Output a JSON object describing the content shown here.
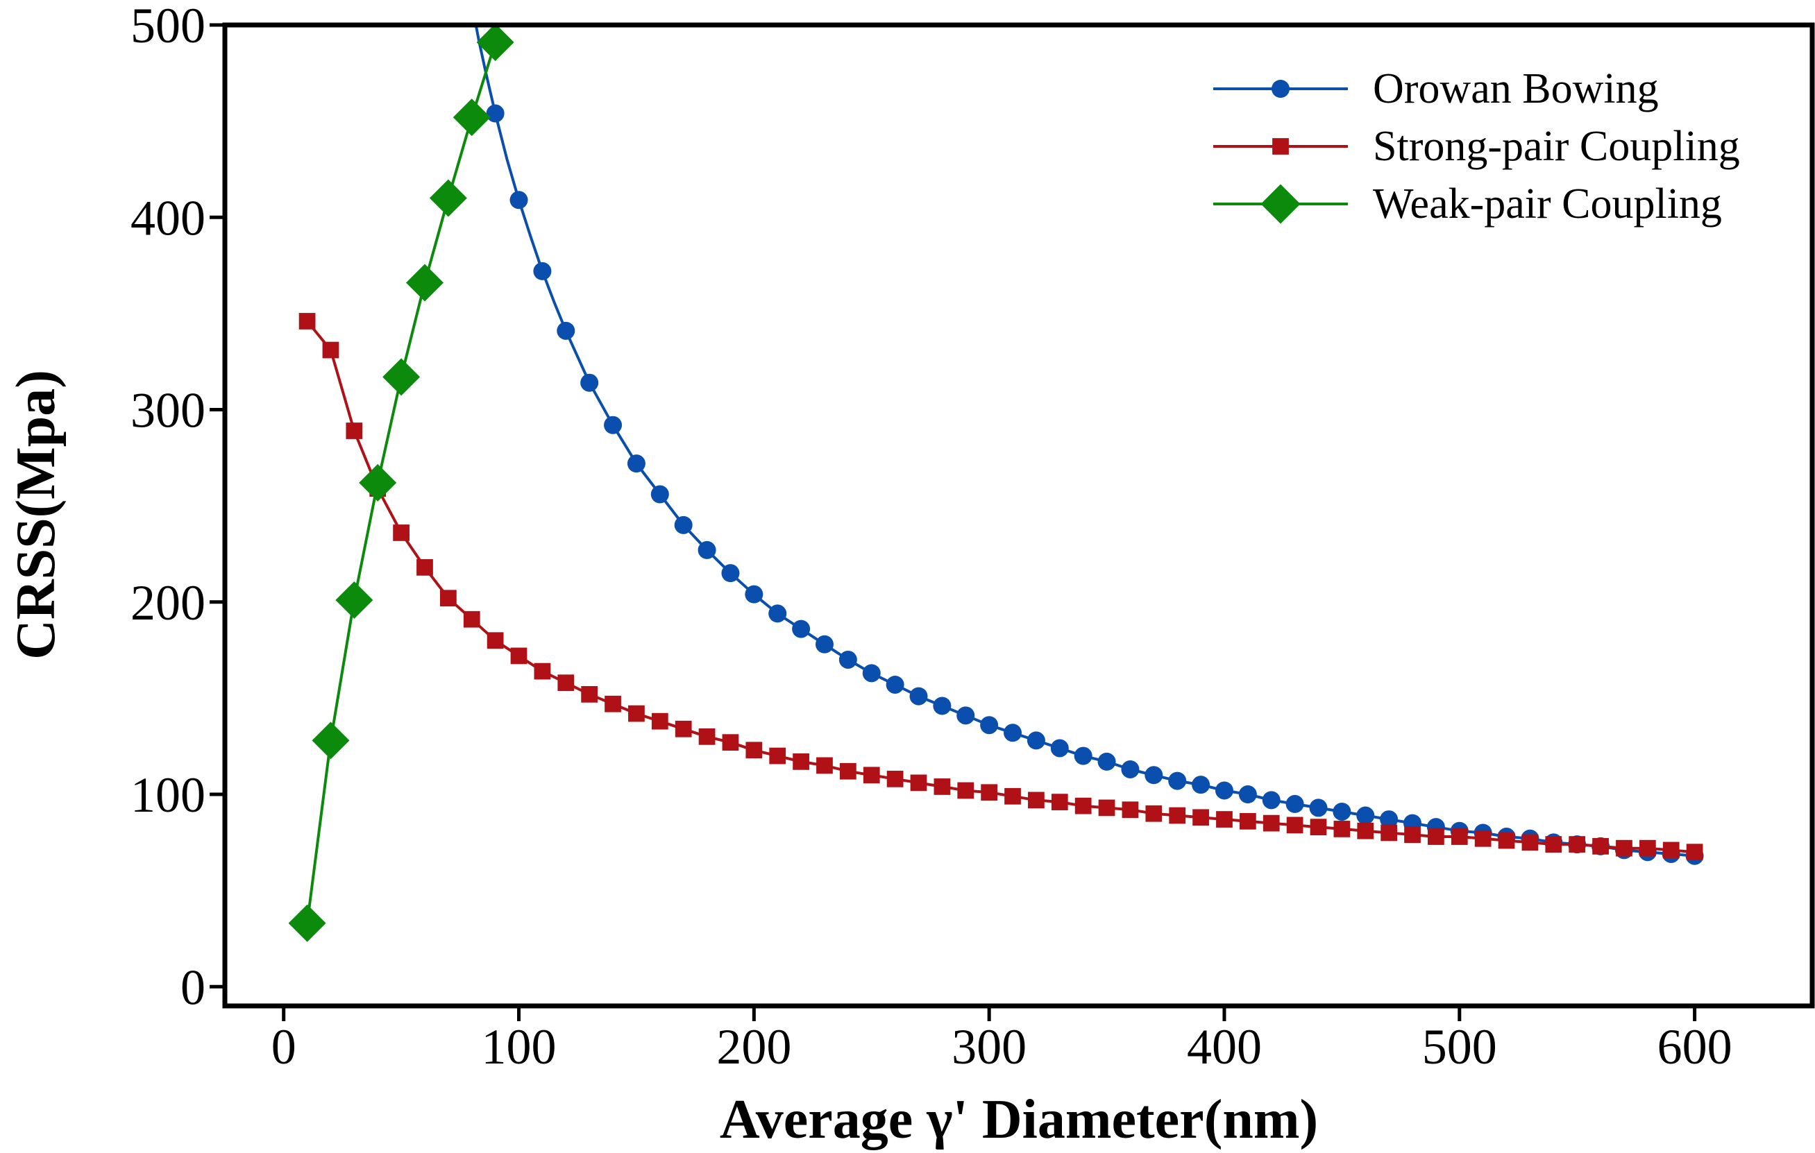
{
  "chart_data": {
    "type": "line",
    "title": "",
    "xlabel": "Average γ' Diameter(nm)",
    "ylabel": "CRSS(Mpa)",
    "xlim": [
      -25,
      650
    ],
    "ylim": [
      -10,
      500
    ],
    "xticks": [
      0,
      100,
      200,
      300,
      400,
      500,
      600
    ],
    "yticks": [
      0,
      100,
      200,
      300,
      400,
      500
    ],
    "grid": false,
    "legend_position": "top-right",
    "series": [
      {
        "name": "Orowan Bowing",
        "color": "#0a4fad",
        "marker": "circle",
        "x": [
          90,
          100,
          110,
          120,
          130,
          140,
          150,
          160,
          170,
          180,
          190,
          200,
          210,
          220,
          230,
          240,
          250,
          260,
          270,
          280,
          290,
          300,
          310,
          320,
          330,
          340,
          350,
          360,
          370,
          380,
          390,
          400,
          410,
          420,
          430,
          440,
          450,
          460,
          470,
          480,
          490,
          500,
          510,
          520,
          530,
          540,
          550,
          560,
          570,
          580,
          590,
          600
        ],
        "y": [
          454,
          409,
          372,
          341,
          314,
          292,
          272,
          256,
          240,
          227,
          215,
          204,
          194,
          186,
          178,
          170,
          163,
          157,
          151,
          146,
          141,
          136,
          132,
          128,
          124,
          120,
          117,
          113,
          110,
          107,
          105,
          102,
          100,
          97,
          95,
          93,
          91,
          89,
          87,
          85,
          83,
          81,
          80,
          78,
          77,
          75,
          74,
          73,
          71,
          70,
          69,
          68
        ],
        "line_x": [
          80,
          83,
          86,
          90,
          95,
          100,
          105,
          110,
          115,
          120,
          130,
          140,
          150,
          160,
          170,
          180,
          190,
          200,
          210,
          220,
          230,
          240,
          250,
          260,
          270,
          280,
          290,
          300,
          310,
          320,
          330,
          340,
          350,
          360,
          370,
          380,
          390,
          400,
          410,
          420,
          430,
          440,
          450,
          460,
          470,
          480,
          490,
          500,
          510,
          520,
          530,
          540,
          550,
          560,
          570,
          580,
          590,
          600
        ],
        "line_y": [
          511,
          492,
          475,
          454,
          430,
          409,
          390,
          372,
          356,
          341,
          314,
          292,
          272,
          256,
          240,
          227,
          215,
          204,
          194,
          186,
          178,
          170,
          163,
          157,
          151,
          146,
          141,
          136,
          132,
          128,
          124,
          120,
          117,
          113,
          110,
          107,
          105,
          102,
          100,
          97,
          95,
          93,
          91,
          89,
          87,
          85,
          83,
          81,
          80,
          78,
          77,
          75,
          74,
          73,
          71,
          70,
          69,
          68
        ]
      },
      {
        "name": "Strong-pair Coupling",
        "color": "#b01116",
        "marker": "square",
        "x": [
          10,
          20,
          30,
          40,
          50,
          60,
          70,
          80,
          90,
          100,
          110,
          120,
          130,
          140,
          150,
          160,
          170,
          180,
          190,
          200,
          210,
          220,
          230,
          240,
          250,
          260,
          270,
          280,
          290,
          300,
          310,
          320,
          330,
          340,
          350,
          360,
          370,
          380,
          390,
          400,
          410,
          420,
          430,
          440,
          450,
          460,
          470,
          480,
          490,
          500,
          510,
          520,
          530,
          540,
          550,
          560,
          570,
          580,
          590,
          600
        ],
        "y": [
          346,
          331,
          289,
          259,
          236,
          218,
          202,
          191,
          180,
          172,
          164,
          158,
          152,
          147,
          142,
          138,
          134,
          130,
          127,
          123,
          120,
          117,
          115,
          112,
          110,
          108,
          106,
          104,
          102,
          101,
          99,
          97,
          96,
          94,
          93,
          92,
          90,
          89,
          88,
          87,
          86,
          85,
          84,
          83,
          82,
          81,
          80,
          79,
          78,
          78,
          77,
          76,
          75,
          74,
          74,
          73,
          72,
          72,
          71,
          70
        ]
      },
      {
        "name": "Weak-pair Coupling",
        "color": "#0b8a0c",
        "marker": "diamond",
        "x": [
          10,
          20,
          30,
          40,
          50,
          60,
          70,
          80,
          90
        ],
        "y": [
          33,
          128,
          201,
          262,
          317,
          366,
          410,
          452,
          491
        ]
      }
    ]
  }
}
